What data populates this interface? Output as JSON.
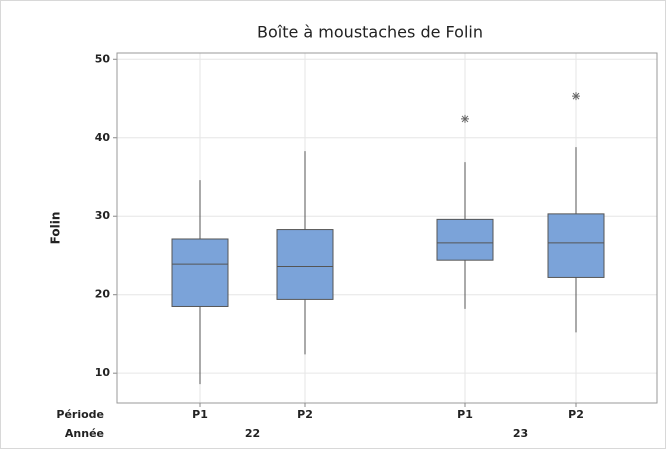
{
  "chart_data": {
    "type": "box",
    "title": "Boîte à moustaches de Folin",
    "ylabel": "Folin",
    "period_label": "Période",
    "year_label": "Année",
    "periods": [
      "P1",
      "P2",
      "P1",
      "P2"
    ],
    "years": [
      "22",
      "23"
    ],
    "color": "#7ba3d9",
    "boxes": [
      {
        "whisker_low": 8.6,
        "q1": 18.5,
        "median": 23.9,
        "q3": 27.1,
        "whisker_high": 34.6,
        "outliers": []
      },
      {
        "whisker_low": 12.4,
        "q1": 19.4,
        "median": 23.6,
        "q3": 28.3,
        "whisker_high": 38.3,
        "outliers": []
      },
      {
        "whisker_low": 18.2,
        "q1": 24.4,
        "median": 26.6,
        "q3": 29.6,
        "whisker_high": 36.9,
        "outliers": [
          42.4
        ]
      },
      {
        "whisker_low": 15.2,
        "q1": 22.2,
        "median": 26.6,
        "q3": 30.3,
        "whisker_high": 38.8,
        "outliers": [
          45.3
        ]
      }
    ],
    "ylim": [
      6.2,
      50.8
    ],
    "yticks": [
      10,
      20,
      30,
      40,
      50
    ],
    "grid": true
  }
}
